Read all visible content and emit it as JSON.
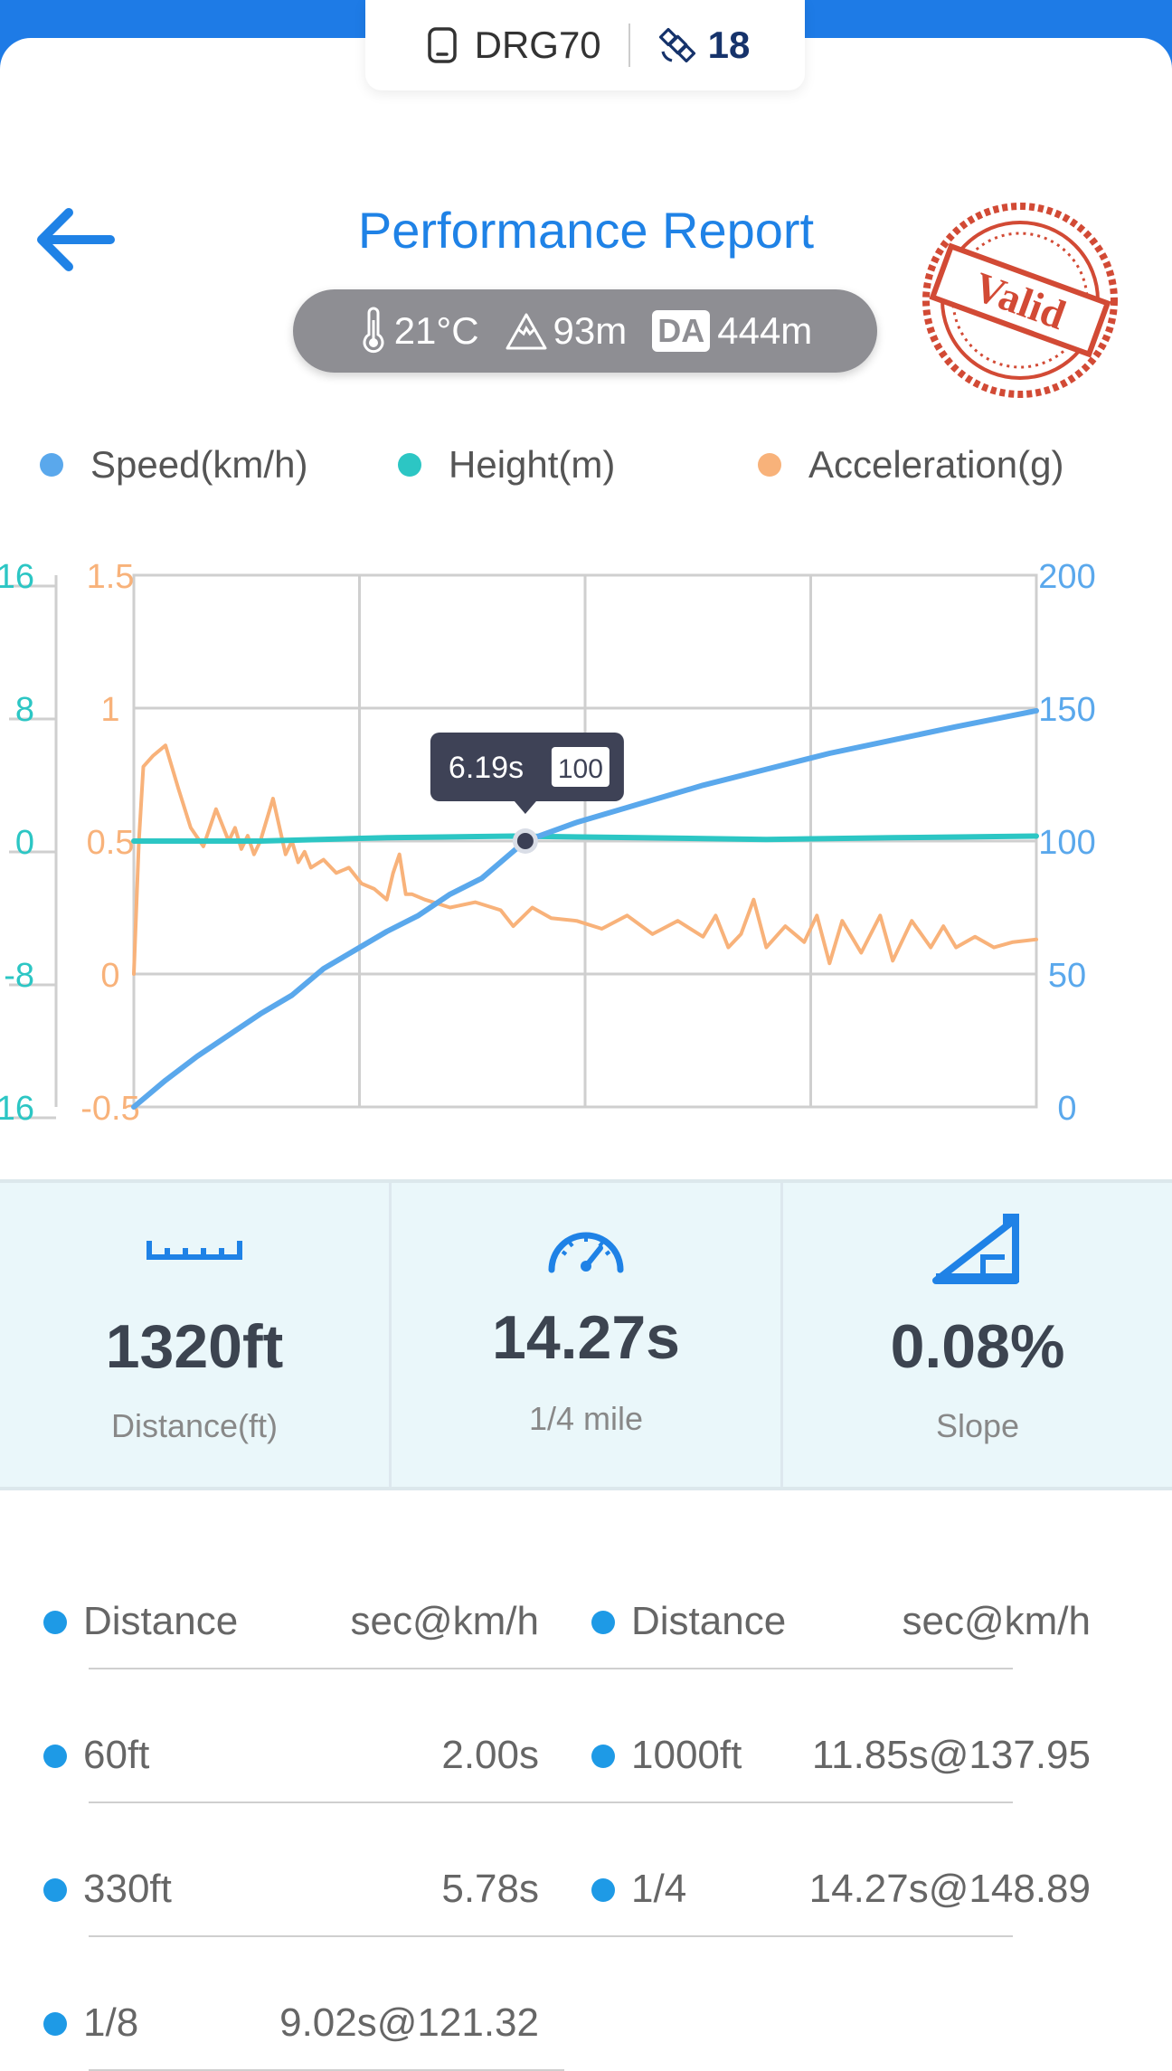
{
  "device": {
    "name": "DRG70",
    "satellites": "18"
  },
  "header": {
    "title": "Performance Report",
    "stamp_text": "Valid"
  },
  "conditions": {
    "temperature": "21°C",
    "altitude": "93m",
    "da_label": "DA",
    "density_altitude": "444m"
  },
  "legend": [
    {
      "label": "Speed(km/h)",
      "color": "#5aa8ec"
    },
    {
      "label": "Height(m)",
      "color": "#2cc6c4"
    },
    {
      "label": "Acceleration(g)",
      "color": "#f8b27a"
    }
  ],
  "tooltip": {
    "time": "6.19s",
    "speed": "100"
  },
  "chart_data": {
    "type": "line",
    "x_range": [
      0,
      14.27
    ],
    "axes": {
      "height": {
        "ticks": [
          "16",
          "8",
          "0",
          "-8",
          "-16"
        ],
        "range": [
          -16,
          16
        ],
        "color": "#2cc6c4"
      },
      "acceleration": {
        "ticks": [
          "1.5",
          "1",
          "0.5",
          "0",
          "-0.5"
        ],
        "range": [
          -0.5,
          1.5
        ],
        "color": "#f8b27a"
      },
      "speed": {
        "ticks": [
          "200",
          "150",
          "100",
          "50",
          "0"
        ],
        "range": [
          0,
          200
        ],
        "color": "#5aa8ec"
      }
    },
    "grid": true,
    "series": [
      {
        "name": "Speed(km/h)",
        "axis": "speed",
        "x": [
          0,
          0.5,
          1,
          1.5,
          2,
          2.5,
          3,
          3.5,
          4,
          4.5,
          5,
          5.5,
          6.19,
          7,
          8,
          9,
          10,
          11,
          12,
          13,
          14.27
        ],
        "y": [
          0,
          10,
          19,
          27,
          35,
          42,
          52,
          59,
          66,
          72,
          80,
          86,
          100,
          107,
          114,
          121,
          127,
          133,
          138,
          143,
          149
        ]
      },
      {
        "name": "Height(m)",
        "axis": "height",
        "x": [
          0,
          2,
          4,
          6,
          8,
          10,
          12,
          14.27
        ],
        "y": [
          0,
          0,
          0.2,
          0.3,
          0.2,
          0.1,
          0.2,
          0.3
        ]
      },
      {
        "name": "Acceleration(g)",
        "axis": "acceleration",
        "x": [
          0,
          0.08,
          0.15,
          0.3,
          0.5,
          0.7,
          0.9,
          1.1,
          1.3,
          1.5,
          1.6,
          1.7,
          1.8,
          1.9,
          2.0,
          2.2,
          2.4,
          2.5,
          2.6,
          2.7,
          2.8,
          3.0,
          3.2,
          3.4,
          3.6,
          3.8,
          4.0,
          4.1,
          4.2,
          4.3,
          4.4,
          4.6,
          5.0,
          5.4,
          5.8,
          6.0,
          6.3,
          6.6,
          7.0,
          7.4,
          7.8,
          8.2,
          8.6,
          9.0,
          9.2,
          9.4,
          9.6,
          9.8,
          10.0,
          10.3,
          10.6,
          10.8,
          11.0,
          11.2,
          11.5,
          11.8,
          12.0,
          12.3,
          12.6,
          12.8,
          13.0,
          13.3,
          13.6,
          13.9,
          14.27
        ],
        "y": [
          0,
          0.5,
          0.78,
          0.82,
          0.86,
          0.7,
          0.55,
          0.48,
          0.62,
          0.5,
          0.55,
          0.47,
          0.52,
          0.45,
          0.5,
          0.66,
          0.45,
          0.5,
          0.42,
          0.46,
          0.4,
          0.43,
          0.38,
          0.4,
          0.34,
          0.32,
          0.28,
          0.38,
          0.45,
          0.3,
          0.3,
          0.28,
          0.25,
          0.27,
          0.24,
          0.18,
          0.25,
          0.21,
          0.2,
          0.17,
          0.22,
          0.15,
          0.2,
          0.14,
          0.22,
          0.1,
          0.15,
          0.28,
          0.1,
          0.18,
          0.12,
          0.22,
          0.04,
          0.2,
          0.08,
          0.22,
          0.05,
          0.2,
          0.1,
          0.18,
          0.1,
          0.14,
          0.1,
          0.12,
          0.13
        ]
      }
    ]
  },
  "stats": [
    {
      "value": "1320ft",
      "label": "Distance(ft)",
      "icon": "ruler-icon"
    },
    {
      "value": "14.27s",
      "label": "1/4 mile",
      "icon": "speedometer-icon"
    },
    {
      "value": "0.08%",
      "label": "Slope",
      "icon": "slope-icon"
    }
  ],
  "splits": {
    "header": {
      "left_label": "Distance",
      "left_value": "sec@km/h",
      "right_label": "Distance",
      "right_value": "sec@km/h"
    },
    "rows": [
      {
        "left_label": "60ft",
        "left_value": "2.00s",
        "right_label": "1000ft",
        "right_value": "11.85s@137.95"
      },
      {
        "left_label": "330ft",
        "left_value": "5.78s",
        "right_label": "1/4",
        "right_value": "14.27s@148.89"
      },
      {
        "left_label": "1/8",
        "left_value": "9.02s@121.32",
        "right_label": "",
        "right_value": ""
      }
    ]
  }
}
